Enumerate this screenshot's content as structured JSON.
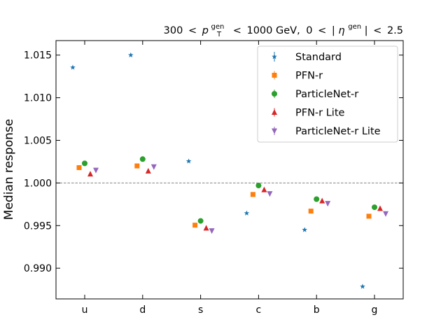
{
  "chart_data": {
    "type": "scatter",
    "title": "300 < p_T^gen < 1000 GeV, 0 < |η^gen| < 2.5",
    "title_parts": {
      "pt_low": "300",
      "lt1": "<",
      "pt_symbol": "p",
      "pt_sub": "T",
      "pt_sup": "gen",
      "lt2": "<",
      "pt_high": "1000 GeV,",
      "eta_low": "0",
      "lt3": "<",
      "eta_open": "|",
      "eta_symbol": "η",
      "eta_sup": "gen",
      "eta_close": "|",
      "lt4": "<",
      "eta_high": "2.5"
    },
    "xlabel": "",
    "ylabel": "Median response",
    "categories": [
      "u",
      "d",
      "s",
      "c",
      "b",
      "g"
    ],
    "ylim": [
      0.9864,
      1.0167
    ],
    "yticks": [
      0.99,
      0.995,
      1.0,
      1.005,
      1.01,
      1.015
    ],
    "ytick_labels": [
      "0.990",
      "0.995",
      "1.000",
      "1.005",
      "1.010",
      "1.015"
    ],
    "reference_line": 1.0,
    "grid": false,
    "legend_position": "top-right",
    "series": [
      {
        "name": "Standard",
        "color": "#1f77b4",
        "marker": "star",
        "values": [
          1.01355,
          1.015,
          1.00255,
          0.99645,
          0.9945,
          0.98785
        ]
      },
      {
        "name": "PFN-r",
        "color": "#ff7f0e",
        "marker": "square",
        "values": [
          1.0018,
          1.002,
          0.99505,
          0.99865,
          0.9967,
          0.9961
        ]
      },
      {
        "name": "ParticleNet-r",
        "color": "#2ca02c",
        "marker": "circle",
        "values": [
          1.0023,
          1.0028,
          0.99555,
          0.9997,
          0.9981,
          0.99715
        ]
      },
      {
        "name": "PFN-r Lite",
        "color": "#d62728",
        "marker": "triangle-up",
        "values": [
          1.00105,
          1.0014,
          0.9947,
          0.9992,
          0.9979,
          0.997
        ]
      },
      {
        "name": "ParticleNet-r Lite",
        "color": "#9467bd",
        "marker": "triangle-down",
        "values": [
          1.0015,
          1.0019,
          0.9944,
          0.99875,
          0.9976,
          0.9964
        ]
      }
    ]
  }
}
